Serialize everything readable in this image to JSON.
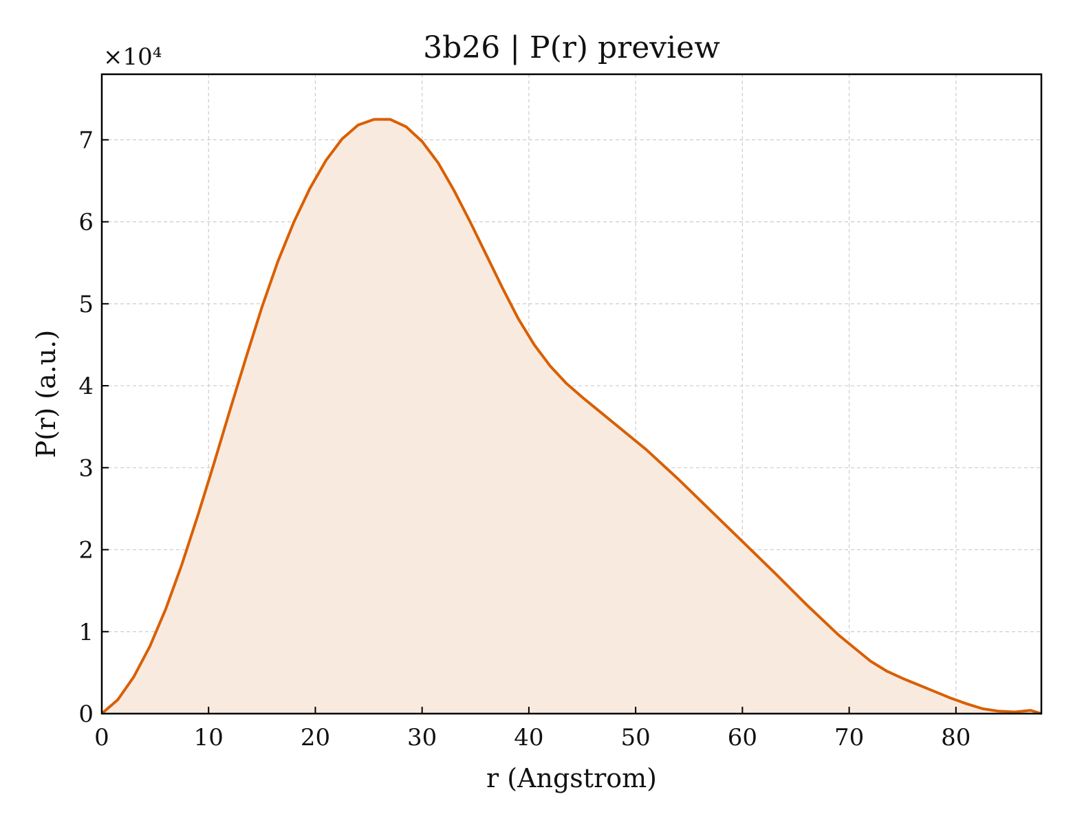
{
  "chart_data": {
    "type": "area",
    "title": "3b26 | P(r) preview",
    "xlabel": "r (Angstrom)",
    "ylabel": "P(r) (a.u.)",
    "y_multiplier_label": "×10⁴",
    "xlim": [
      0,
      88
    ],
    "ylim": [
      0,
      7.8
    ],
    "x_ticks": [
      0,
      10,
      20,
      30,
      40,
      50,
      60,
      70,
      80
    ],
    "y_ticks": [
      0,
      1,
      2,
      3,
      4,
      5,
      6,
      7
    ],
    "grid": true,
    "line_color": "#d95f02",
    "fill_color": "#f9eadf",
    "series": [
      {
        "x": [
          0,
          1.5,
          3,
          4.5,
          6,
          7.5,
          9,
          10.5,
          12,
          13.5,
          15,
          16.5,
          18,
          19.5,
          21,
          22.5,
          24,
          25.5,
          27,
          28.5,
          30,
          31.5,
          33,
          34.5,
          36,
          37.5,
          39,
          40.5,
          42,
          43.5,
          45,
          48,
          51,
          54,
          57,
          60,
          63,
          66,
          69,
          70.5,
          72,
          73.5,
          75,
          76.5,
          78,
          79.5,
          81,
          82.5,
          84,
          85.5,
          87,
          88
        ],
        "y": [
          0,
          0.17,
          0.45,
          0.82,
          1.28,
          1.82,
          2.42,
          3.05,
          3.7,
          4.34,
          4.96,
          5.52,
          6.0,
          6.41,
          6.75,
          7.01,
          7.18,
          7.25,
          7.25,
          7.16,
          6.98,
          6.72,
          6.38,
          6.0,
          5.6,
          5.2,
          4.82,
          4.5,
          4.24,
          4.03,
          3.86,
          3.54,
          3.22,
          2.86,
          2.48,
          2.1,
          1.72,
          1.33,
          0.96,
          0.8,
          0.64,
          0.52,
          0.43,
          0.35,
          0.27,
          0.19,
          0.12,
          0.06,
          0.03,
          0.02,
          0.04,
          0.0
        ]
      }
    ]
  }
}
